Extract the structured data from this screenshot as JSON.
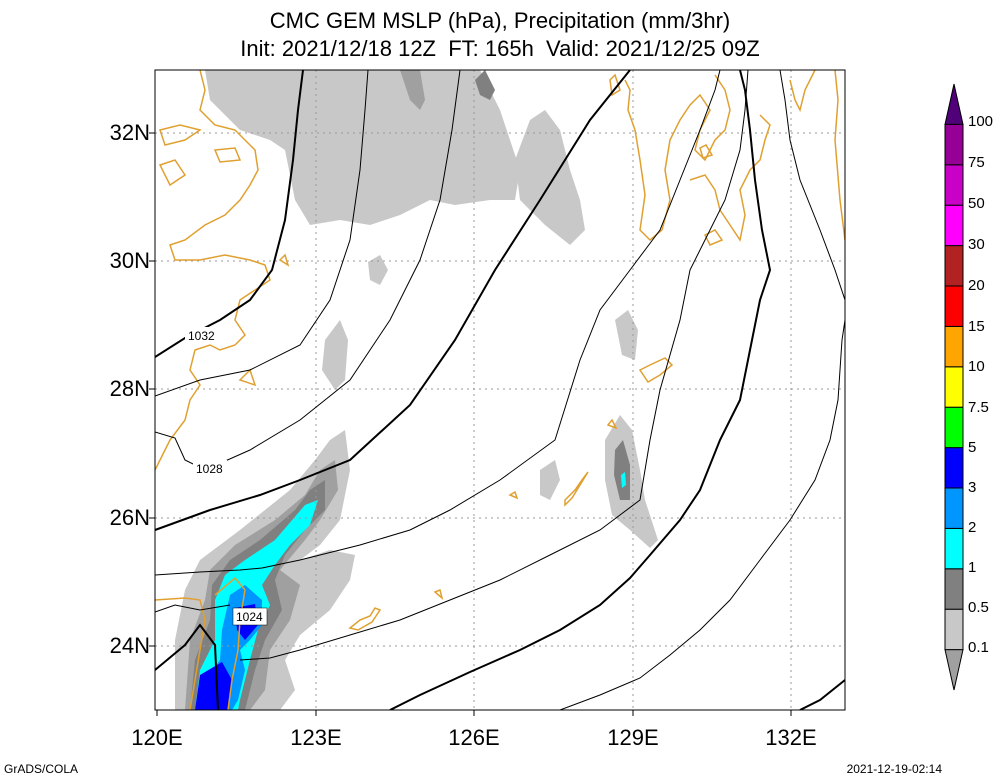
{
  "title": {
    "line1": "CMC GEM MSLP (hPa), Precipitation (mm/3hr)",
    "line2": "Init: 2021/12/18 12Z  FT: 165h  Valid: 2021/12/25 09Z"
  },
  "axes": {
    "lat_labels": [
      "32N",
      "30N",
      "28N",
      "26N",
      "24N"
    ],
    "lon_labels": [
      "120E",
      "123E",
      "126E",
      "129E",
      "132E"
    ],
    "lat_range": [
      23,
      33
    ],
    "lon_range": [
      120,
      133
    ]
  },
  "isobar_labels": [
    "1032",
    "1028",
    "1024"
  ],
  "colorbar": {
    "labels": [
      "100",
      "75",
      "50",
      "30",
      "20",
      "15",
      "10",
      "7.5",
      "5",
      "3",
      "2",
      "1",
      "0.5",
      "0.1"
    ],
    "colors": [
      "#a0a0a0",
      "#c8c8c8",
      "#808080",
      "#00ffff",
      "#0096ff",
      "#0000ff",
      "#00ff00",
      "#ffff00",
      "#ffa500",
      "#ff0000",
      "#b22222",
      "#ff00ff",
      "#c800c8",
      "#960096",
      "#500078"
    ]
  },
  "footer": {
    "left": "GrADS/COLA",
    "right": "2021-12-19-02:14"
  },
  "colors": {
    "coast": "#e0a030",
    "grid": "#999999",
    "precip_light": "#c8c8c8",
    "precip_mid": "#a0a0a0",
    "precip_dark": "#808080",
    "precip_cyan": "#00ffff",
    "precip_blue": "#0000ff"
  }
}
